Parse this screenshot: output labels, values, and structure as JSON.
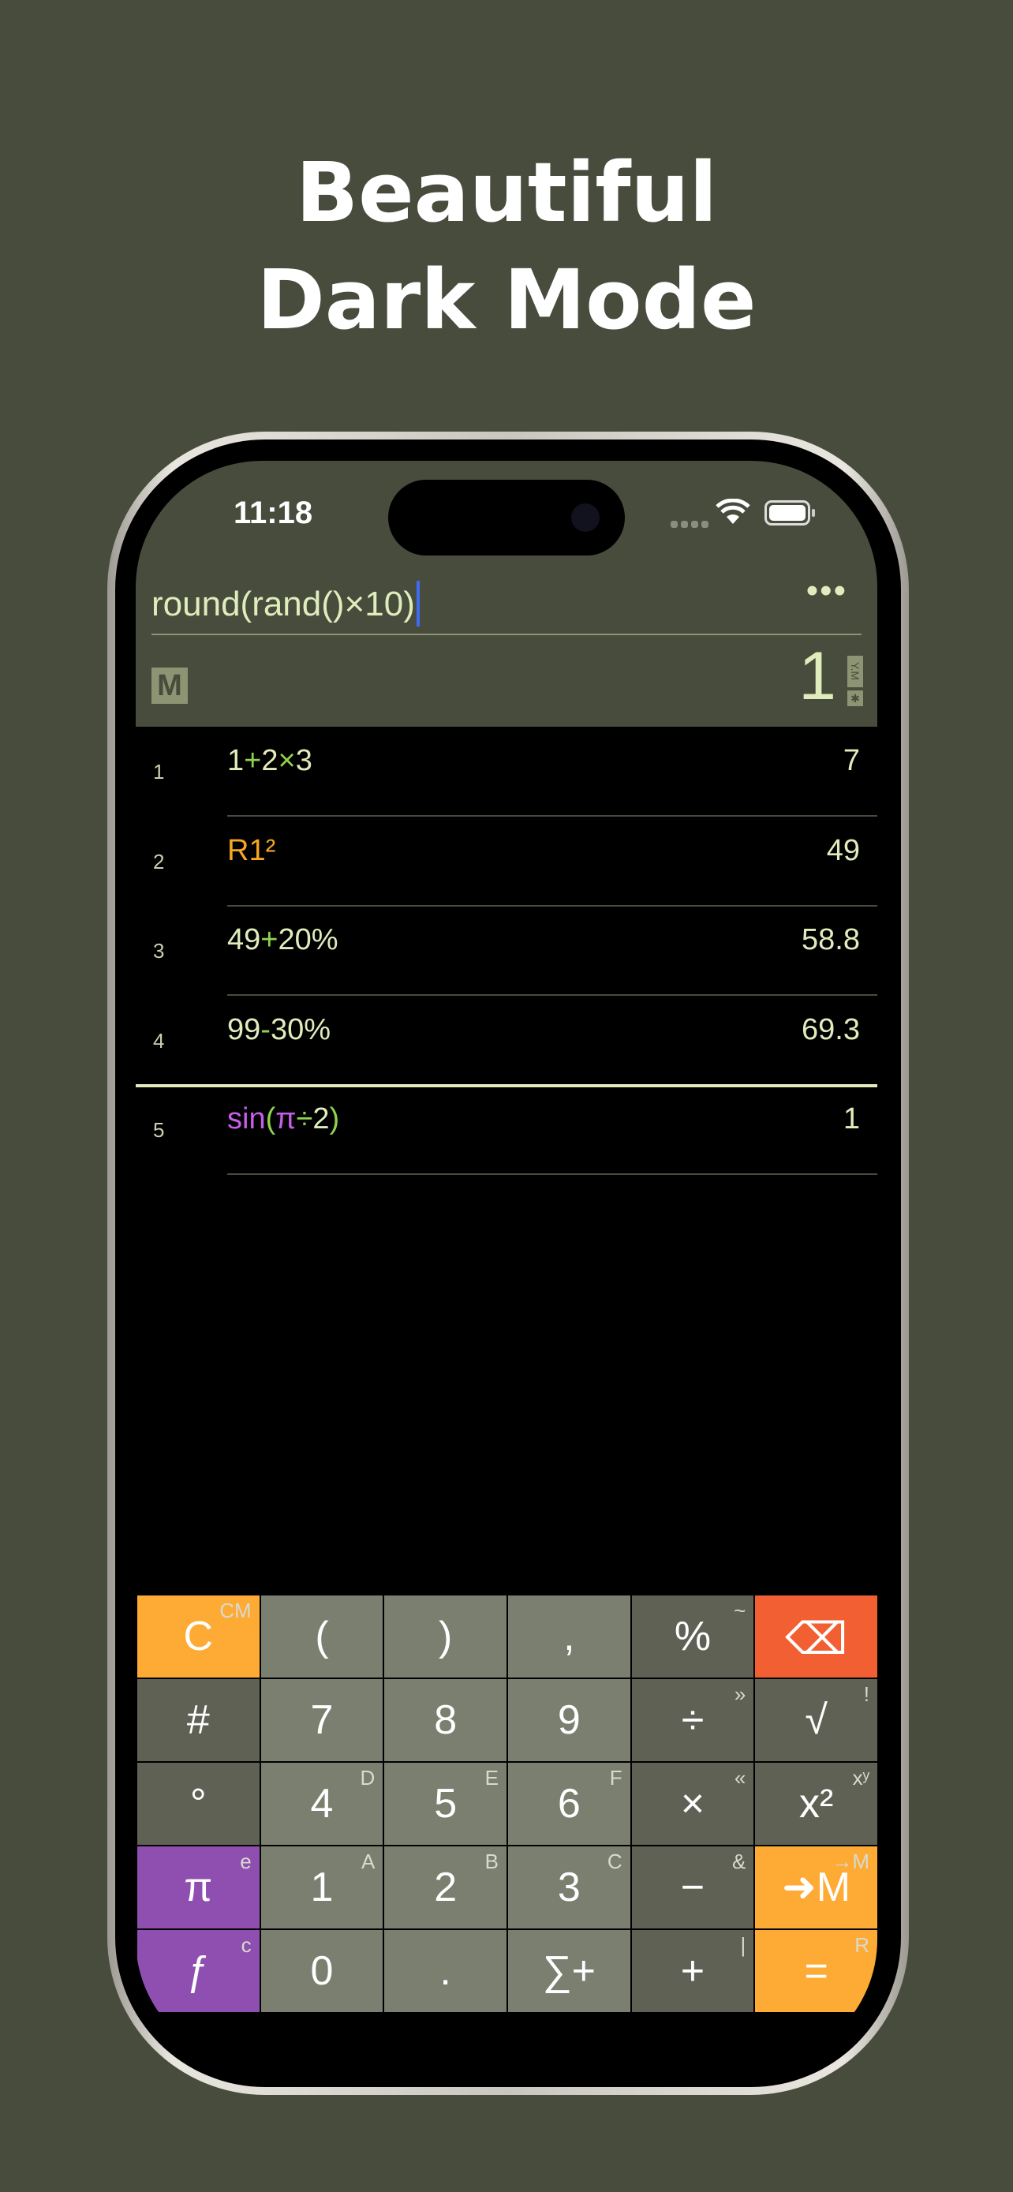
{
  "headline": [
    "Beautiful",
    "Dark Mode"
  ],
  "status_bar": {
    "time": "11:18"
  },
  "input": {
    "expression": "round(rand()×10)",
    "more_label": "•••"
  },
  "memory_badge": "M",
  "current_result": "1",
  "flags": [
    "Y.M",
    "✱"
  ],
  "colors": {
    "background": "#474c3c",
    "text": "#e0ecbc",
    "operator": "#8ed34f",
    "reference": "#f5a623",
    "function": "#c55ee8",
    "orange_key": "#fdab35",
    "purple_key": "#8e4fb0",
    "red_key": "#f25f33",
    "digit_key": "#7b7f70",
    "op_key": "#5f6155"
  },
  "history": [
    {
      "num": "1",
      "parts": [
        [
          "1",
          "t"
        ],
        [
          "+",
          "o"
        ],
        [
          "2",
          "t"
        ],
        [
          "×",
          "o"
        ],
        [
          "3",
          "t"
        ]
      ],
      "result": "7"
    },
    {
      "num": "2",
      "parts": [
        [
          "R1²",
          "r"
        ]
      ],
      "result": "49"
    },
    {
      "num": "3",
      "parts": [
        [
          "49",
          "t"
        ],
        [
          "+",
          "o"
        ],
        [
          "20%",
          "t"
        ]
      ],
      "result": "58.8"
    },
    {
      "num": "4",
      "parts": [
        [
          "99",
          "t"
        ],
        [
          "-",
          "o"
        ],
        [
          "30%",
          "t"
        ]
      ],
      "result": "69.3"
    },
    {
      "num": "5",
      "parts": [
        [
          "sin",
          "f"
        ],
        [
          "(",
          "o"
        ],
        [
          "π",
          "f"
        ],
        [
          "÷",
          "o"
        ],
        [
          "2",
          "t"
        ],
        [
          ")",
          "o"
        ]
      ],
      "result": "1"
    }
  ],
  "keypad": [
    [
      {
        "l": "C",
        "s": "CM",
        "c": "orange"
      },
      {
        "l": "(",
        "s": "",
        "c": "digit"
      },
      {
        "l": ")",
        "s": "",
        "c": "digit"
      },
      {
        "l": ",",
        "s": "",
        "c": "digit"
      },
      {
        "l": "%",
        "s": "~",
        "c": "op"
      },
      {
        "l": "⌫",
        "s": "",
        "c": "red",
        "icon": "backspace-icon"
      }
    ],
    [
      {
        "l": "#",
        "s": "",
        "c": "op"
      },
      {
        "l": "7",
        "s": "",
        "c": "digit"
      },
      {
        "l": "8",
        "s": "",
        "c": "digit"
      },
      {
        "l": "9",
        "s": "",
        "c": "digit"
      },
      {
        "l": "÷",
        "s": "»",
        "c": "op"
      },
      {
        "l": "√",
        "s": "!",
        "c": "op"
      }
    ],
    [
      {
        "l": "°",
        "s": "",
        "c": "op"
      },
      {
        "l": "4",
        "s": "D",
        "c": "digit"
      },
      {
        "l": "5",
        "s": "E",
        "c": "digit"
      },
      {
        "l": "6",
        "s": "F",
        "c": "digit"
      },
      {
        "l": "×",
        "s": "«",
        "c": "op"
      },
      {
        "l": "x²",
        "s": "xʸ",
        "c": "op"
      }
    ],
    [
      {
        "l": "π",
        "s": "e",
        "c": "purple"
      },
      {
        "l": "1",
        "s": "A",
        "c": "digit"
      },
      {
        "l": "2",
        "s": "B",
        "c": "digit"
      },
      {
        "l": "3",
        "s": "C",
        "c": "digit"
      },
      {
        "l": "−",
        "s": "&",
        "c": "op"
      },
      {
        "l": "➜M",
        "s": "→M",
        "c": "orange"
      }
    ],
    [
      {
        "l": "ƒ",
        "s": "c",
        "c": "purple"
      },
      {
        "l": "0",
        "s": "",
        "c": "digit"
      },
      {
        "l": ".",
        "s": "",
        "c": "digit"
      },
      {
        "l": "∑+",
        "s": "",
        "c": "digit"
      },
      {
        "l": "+",
        "s": "|",
        "c": "op"
      },
      {
        "l": "=",
        "s": "R",
        "c": "orange"
      }
    ]
  ]
}
